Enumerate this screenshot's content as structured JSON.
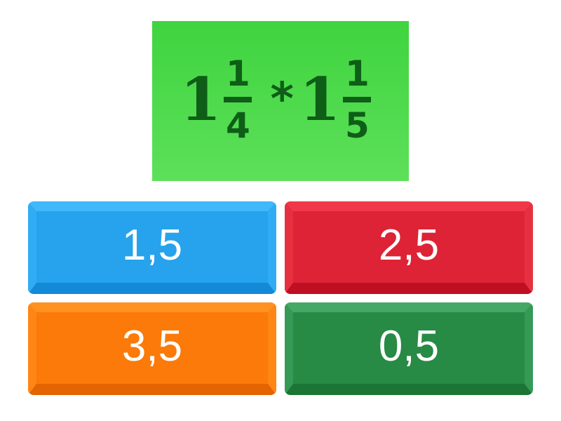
{
  "question": {
    "expression": "1 1/4 * 1 1/5",
    "term1": {
      "whole": "1",
      "numerator": "1",
      "denominator": "4"
    },
    "operator": "*",
    "term2": {
      "whole": "1",
      "numerator": "1",
      "denominator": "5"
    },
    "background_color": "#4fda4c"
  },
  "answers": [
    {
      "label": "1,5",
      "color": "#27a2ed"
    },
    {
      "label": "2,5",
      "color": "#dd2335"
    },
    {
      "label": "3,5",
      "color": "#fb7a0a"
    },
    {
      "label": "0,5",
      "color": "#278a45"
    }
  ]
}
